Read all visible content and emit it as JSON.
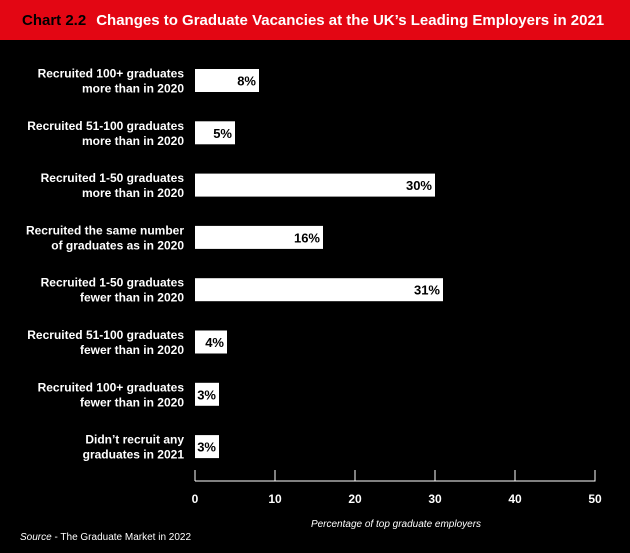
{
  "header": {
    "chart_number": "Chart 2.2",
    "title": "Changes to Graduate Vacancies at the UK’s Leading Employers in 2021"
  },
  "source": {
    "prefix": "Source",
    "text": " - The Graduate Market in 2022"
  },
  "colors": {
    "header_bg": "#e30613",
    "background": "#000000",
    "bar": "#ffffff",
    "text": "#ffffff"
  },
  "chart_data": {
    "type": "bar",
    "orientation": "horizontal",
    "categories": [
      [
        "Recruited 100+ graduates",
        "more than in 2020"
      ],
      [
        "Recruited 51-100 graduates",
        "more than in 2020"
      ],
      [
        "Recruited 1-50 graduates",
        "more than in 2020"
      ],
      [
        "Recruited the same number",
        "of graduates as in 2020"
      ],
      [
        "Recruited 1-50 graduates",
        "fewer than in 2020"
      ],
      [
        "Recruited 51-100 graduates",
        "fewer than in 2020"
      ],
      [
        "Recruited 100+ graduates",
        "fewer than in 2020"
      ],
      [
        "Didn’t recruit any",
        "graduates in 2021"
      ]
    ],
    "values": [
      8,
      5,
      30,
      16,
      31,
      4,
      3,
      3
    ],
    "value_labels": [
      "8%",
      "5%",
      "30%",
      "16%",
      "31%",
      "4%",
      "3%",
      "3%"
    ],
    "xlim": [
      0,
      50
    ],
    "xticks": [
      0,
      10,
      20,
      30,
      40,
      50
    ],
    "xlabel": "Percentage of top graduate employers",
    "grid": false
  }
}
